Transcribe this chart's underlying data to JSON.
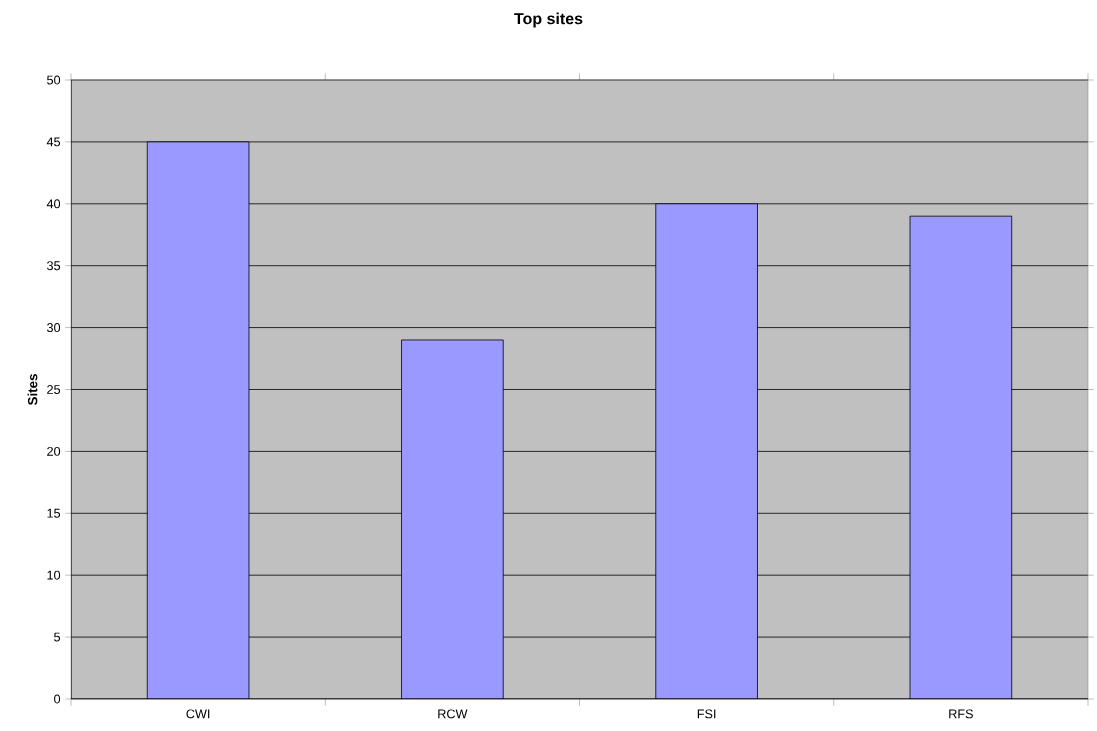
{
  "chart_data": {
    "type": "bar",
    "title": "Top sites",
    "ylabel": "Sites",
    "categories": [
      "CWI",
      "RCW",
      "FSI",
      "RFS"
    ],
    "values": [
      45,
      29,
      40,
      39
    ],
    "color": "#9999ff",
    "ylim": [
      0,
      50
    ],
    "yticks": [
      0,
      5,
      10,
      15,
      20,
      25,
      30,
      35,
      40,
      45,
      50
    ],
    "grid": "y"
  }
}
